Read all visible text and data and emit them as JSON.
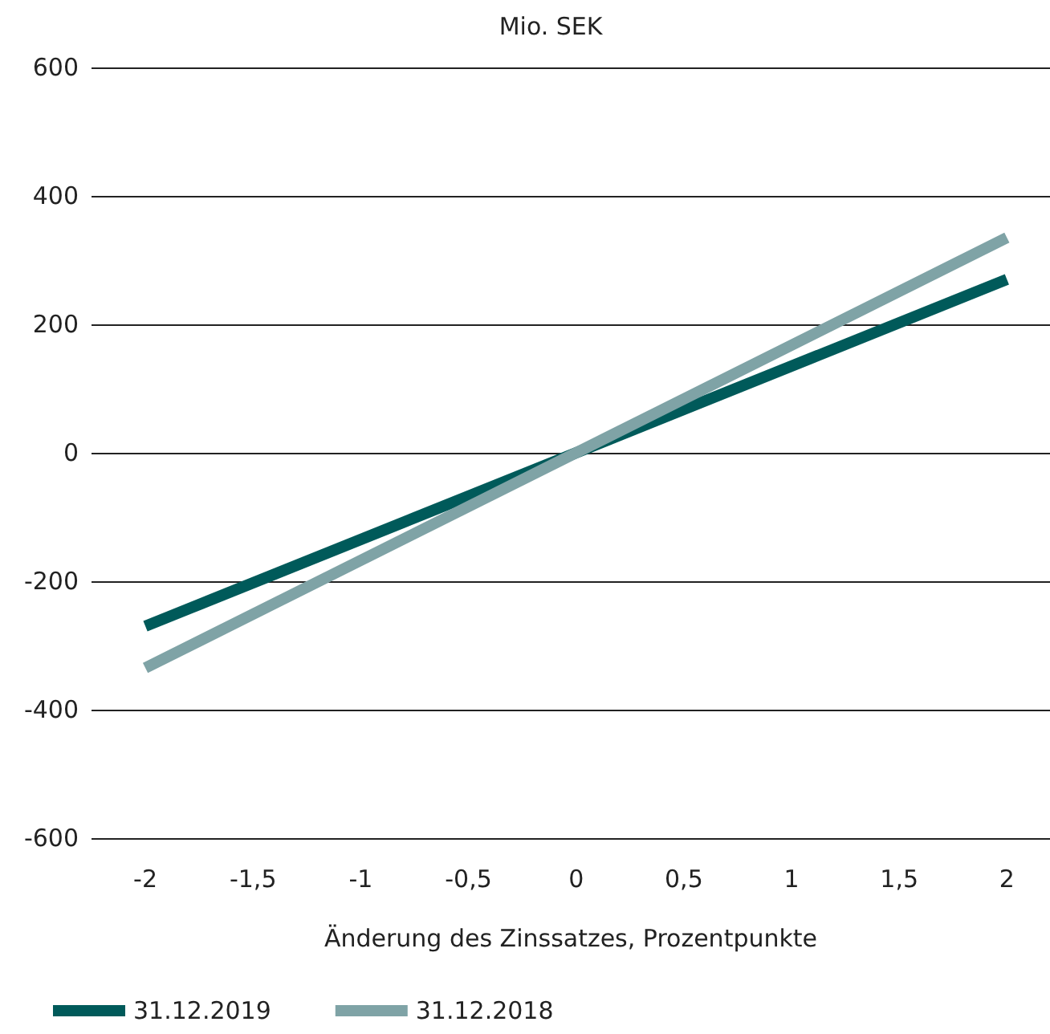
{
  "chart_data": {
    "type": "line",
    "xlabel": "Änderung des Zinssatzes, Prozentpunkte",
    "ylabel": "Mio. SEK",
    "x": [
      -2,
      0,
      2
    ],
    "series": [
      {
        "name": "31.12.2019",
        "color": "#005a5a",
        "values": [
          -270,
          0,
          270
        ]
      },
      {
        "name": "31.12.2018",
        "color": "#7fa3a6",
        "values": [
          -335,
          0,
          335
        ]
      }
    ],
    "xlim": [
      -2.25,
      2.2
    ],
    "xticks": [
      {
        "value": -2,
        "label": "-2"
      },
      {
        "value": -1.5,
        "label": "-1,5"
      },
      {
        "value": -1,
        "label": "-1"
      },
      {
        "value": -0.5,
        "label": "-0,5"
      },
      {
        "value": 0,
        "label": "0"
      },
      {
        "value": 0.5,
        "label": "0,5"
      },
      {
        "value": 1,
        "label": "1"
      },
      {
        "value": 1.5,
        "label": "1,5"
      },
      {
        "value": 2,
        "label": "2"
      }
    ],
    "ylim": [
      -600,
      600
    ],
    "yticks": [
      -600,
      -400,
      -200,
      0,
      200,
      400,
      600
    ],
    "grid": "y",
    "legend": "bottom left",
    "marker": "none",
    "line_style": "solid"
  }
}
